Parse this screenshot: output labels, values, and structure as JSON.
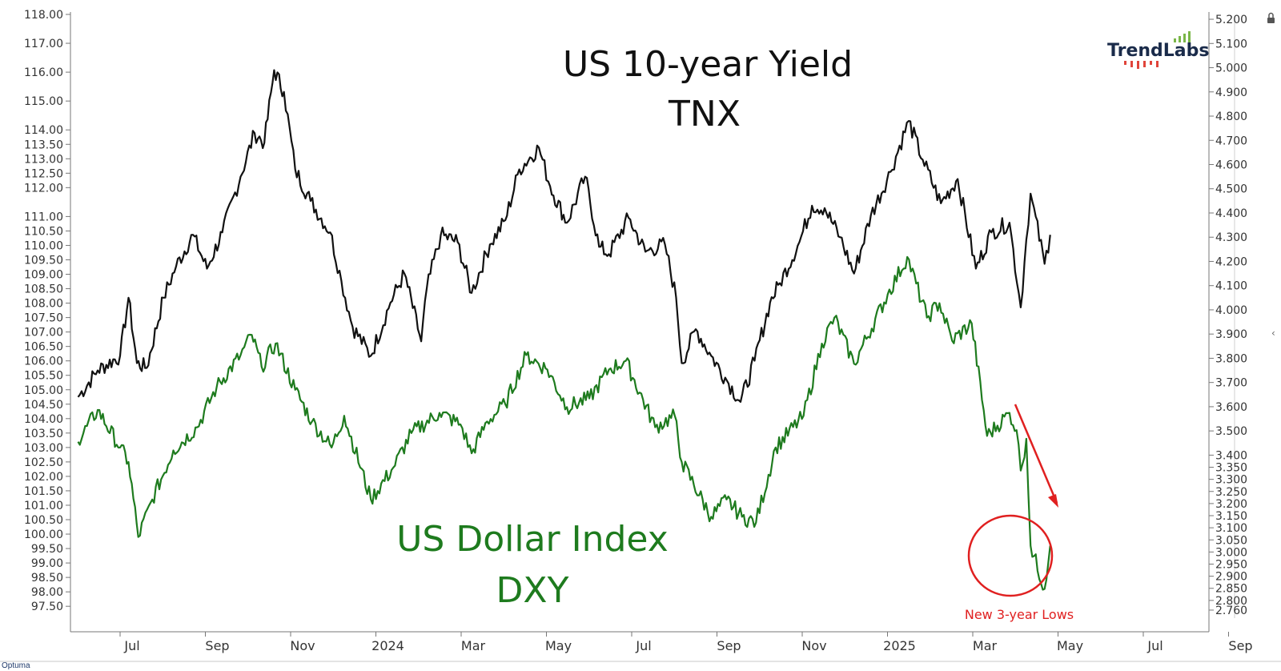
{
  "brand": {
    "logo_text": "TrendLabs",
    "footer_text": "Optuma"
  },
  "chart_data": {
    "type": "line",
    "x_tick_labels": [
      "Jul",
      "Sep",
      "Nov",
      "2024",
      "Mar",
      "May",
      "Jul",
      "Sep",
      "Nov",
      "2025",
      "Mar",
      "May",
      "Jul",
      "Sep"
    ],
    "left_axis": {
      "ylim": [
        97.2,
        118.0
      ],
      "tick_labels": [
        "118.00",
        "117.00",
        "116.00",
        "115.00",
        "114.00",
        "113.50",
        "113.00",
        "112.50",
        "112.00",
        "111.00",
        "110.50",
        "110.00",
        "109.50",
        "109.00",
        "108.50",
        "108.00",
        "107.50",
        "107.00",
        "106.50",
        "106.00",
        "105.50",
        "105.00",
        "104.50",
        "104.00",
        "103.50",
        "103.00",
        "102.50",
        "102.00",
        "101.50",
        "101.00",
        "100.50",
        "100.00",
        "99.50",
        "99.00",
        "98.50",
        "98.00",
        "97.50"
      ]
    },
    "right_axis": {
      "ylim": [
        2.74,
        5.22
      ],
      "tick_labels": [
        "5.200",
        "5.100",
        "5.000",
        "4.900",
        "4.800",
        "4.700",
        "4.600",
        "4.500",
        "4.400",
        "4.300",
        "4.200",
        "4.100",
        "4.000",
        "3.900",
        "3.800",
        "3.700",
        "3.600",
        "3.500",
        "3.400",
        "3.350",
        "3.300",
        "3.250",
        "3.200",
        "3.150",
        "3.100",
        "3.050",
        "3.000",
        "2.950",
        "2.900",
        "2.850",
        "2.800",
        "2.760"
      ]
    },
    "series": [
      {
        "name": "US 10-year Yield",
        "subtitle": "TNX",
        "color": "#111111",
        "axis": "right",
        "dates": [
          "2023-06-01",
          "2023-06-15",
          "2023-07-01",
          "2023-07-07",
          "2023-07-13",
          "2023-07-20",
          "2023-08-01",
          "2023-08-10",
          "2023-08-22",
          "2023-09-01",
          "2023-09-12",
          "2023-09-25",
          "2023-10-05",
          "2023-10-12",
          "2023-10-19",
          "2023-10-26",
          "2023-11-03",
          "2023-11-14",
          "2023-11-28",
          "2023-12-06",
          "2023-12-14",
          "2023-12-27",
          "2024-01-10",
          "2024-01-20",
          "2024-02-01",
          "2024-02-05",
          "2024-02-15",
          "2024-02-27",
          "2024-03-08",
          "2024-03-21",
          "2024-04-01",
          "2024-04-11",
          "2024-04-25",
          "2024-05-03",
          "2024-05-15",
          "2024-05-28",
          "2024-06-07",
          "2024-06-14",
          "2024-06-28",
          "2024-07-10",
          "2024-07-24",
          "2024-08-01",
          "2024-08-05",
          "2024-08-15",
          "2024-08-26",
          "2024-09-05",
          "2024-09-16",
          "2024-09-26",
          "2024-10-07",
          "2024-10-14",
          "2024-10-28",
          "2024-11-06",
          "2024-11-15",
          "2024-11-26",
          "2024-12-06",
          "2024-12-18",
          "2025-01-01",
          "2025-01-14",
          "2025-01-24",
          "2025-02-06",
          "2025-02-18",
          "2025-03-03",
          "2025-03-14",
          "2025-03-27",
          "2025-04-04",
          "2025-04-08",
          "2025-04-11",
          "2025-04-21",
          "2025-04-25"
        ],
        "values": [
          3.64,
          3.75,
          3.81,
          4.05,
          3.78,
          3.76,
          4.05,
          4.18,
          4.31,
          4.17,
          4.32,
          4.55,
          4.73,
          4.69,
          4.99,
          4.9,
          4.58,
          4.45,
          4.32,
          4.12,
          3.93,
          3.81,
          4.03,
          4.15,
          3.87,
          4.09,
          4.31,
          4.28,
          4.07,
          4.27,
          4.37,
          4.58,
          4.67,
          4.51,
          4.36,
          4.55,
          4.26,
          4.23,
          4.38,
          4.24,
          4.27,
          4.05,
          3.78,
          3.92,
          3.81,
          3.72,
          3.62,
          3.79,
          4.03,
          4.11,
          4.28,
          4.43,
          4.42,
          4.3,
          4.15,
          4.39,
          4.57,
          4.78,
          4.62,
          4.44,
          4.54,
          4.17,
          4.32,
          4.36,
          4.01,
          4.29,
          4.48,
          4.19,
          4.31
        ]
      },
      {
        "name": "US Dollar Index",
        "subtitle": "DXY",
        "color": "#1e7b1e",
        "axis": "left",
        "dates": [
          "2023-06-01",
          "2023-06-15",
          "2023-07-01",
          "2023-07-07",
          "2023-07-14",
          "2023-07-24",
          "2023-08-08",
          "2023-08-25",
          "2023-09-08",
          "2023-09-25",
          "2023-10-03",
          "2023-10-10",
          "2023-10-20",
          "2023-11-03",
          "2023-11-15",
          "2023-11-29",
          "2023-12-08",
          "2023-12-27",
          "2024-01-12",
          "2024-01-25",
          "2024-02-14",
          "2024-02-29",
          "2024-03-08",
          "2024-03-19",
          "2024-04-01",
          "2024-04-16",
          "2024-05-01",
          "2024-05-15",
          "2024-05-31",
          "2024-06-14",
          "2024-06-26",
          "2024-07-17",
          "2024-07-31",
          "2024-08-05",
          "2024-08-26",
          "2024-09-06",
          "2024-09-17",
          "2024-09-27",
          "2024-10-11",
          "2024-10-31",
          "2024-11-13",
          "2024-11-22",
          "2024-12-06",
          "2024-12-30",
          "2025-01-13",
          "2025-01-27",
          "2025-02-05",
          "2025-02-14",
          "2025-02-28",
          "2025-03-11",
          "2025-03-27",
          "2025-04-01",
          "2025-04-04",
          "2025-04-08",
          "2025-04-11",
          "2025-04-21",
          "2025-04-25"
        ],
        "values": [
          103.2,
          104.3,
          103.0,
          102.5,
          99.9,
          101.2,
          102.9,
          103.7,
          105.1,
          106.2,
          106.9,
          105.8,
          106.6,
          105.0,
          103.9,
          103.0,
          104.1,
          101.2,
          102.3,
          103.5,
          104.2,
          103.8,
          102.8,
          103.9,
          104.5,
          106.2,
          105.7,
          104.4,
          104.7,
          105.7,
          106.0,
          103.7,
          104.1,
          102.5,
          100.6,
          101.2,
          100.6,
          100.4,
          103.0,
          104.1,
          106.6,
          107.5,
          105.9,
          108.3,
          109.6,
          107.5,
          108.0,
          106.7,
          107.3,
          103.4,
          104.2,
          103.6,
          102.2,
          103.3,
          99.6,
          98.1,
          99.6
        ]
      }
    ],
    "annotations": [
      {
        "text": "New 3-year Lows",
        "color": "#e02020"
      }
    ]
  }
}
